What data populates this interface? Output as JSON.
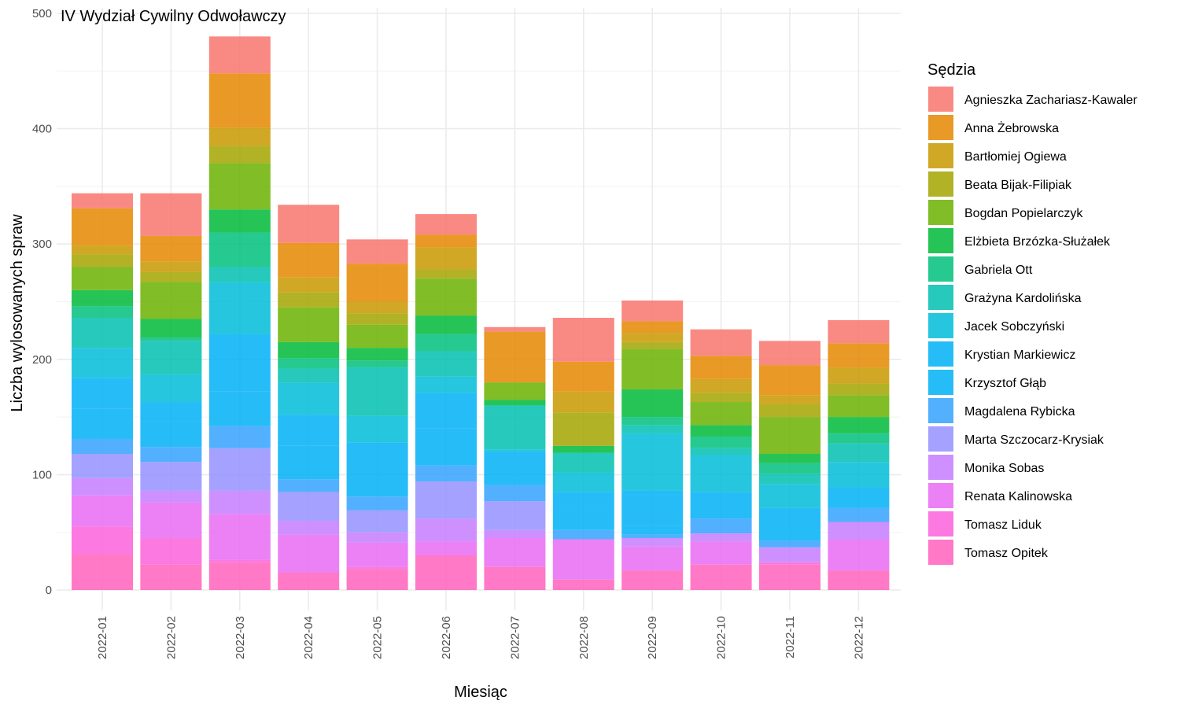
{
  "chart_data": {
    "type": "bar",
    "stacked": true,
    "title": "IV Wydział Cywilny Odwoławczy",
    "xlabel": "Miesiąc",
    "ylabel": "Liczba wylosowanych spraw",
    "ylim": [
      0,
      500
    ],
    "yticks": [
      0,
      100,
      200,
      300,
      400,
      500
    ],
    "grid": true,
    "legend_title": "Sędzia",
    "legend_position": "right",
    "categories": [
      "2022-01",
      "2022-02",
      "2022-03",
      "2022-04",
      "2022-05",
      "2022-06",
      "2022-07",
      "2022-08",
      "2022-09",
      "2022-10",
      "2022-11",
      "2022-12"
    ],
    "series": [
      {
        "name": "Agnieszka Zachariasz-Kawaler",
        "color": "#F8766D",
        "values": [
          13,
          37,
          32,
          33,
          21,
          18,
          4,
          38,
          18,
          23,
          21,
          20
        ]
      },
      {
        "name": "Anna Żebrowska",
        "color": "#E58700",
        "values": [
          32,
          22,
          47,
          30,
          33,
          11,
          44,
          26,
          10,
          20,
          26,
          21
        ]
      },
      {
        "name": "Bartłomiej Ogiewa",
        "color": "#C99800",
        "values": [
          8,
          9,
          16,
          13,
          10,
          19,
          0,
          18,
          8,
          12,
          8,
          14
        ]
      },
      {
        "name": "Beata Bijak-Filipiak",
        "color": "#A3A500",
        "values": [
          11,
          9,
          15,
          13,
          10,
          8,
          0,
          29,
          6,
          8,
          11,
          10
        ]
      },
      {
        "name": "Bogdan Popielarczyk",
        "color": "#6BB100",
        "values": [
          20,
          32,
          40,
          30,
          20,
          32,
          15,
          0,
          35,
          20,
          32,
          19
        ]
      },
      {
        "name": "Elżbieta Brzózka-Służałek",
        "color": "#00BA38",
        "values": [
          14,
          16,
          20,
          14,
          11,
          16,
          5,
          6,
          24,
          10,
          8,
          14
        ]
      },
      {
        "name": "Gabriela Ott",
        "color": "#00BF7D",
        "values": [
          10,
          3,
          30,
          9,
          6,
          15,
          0,
          0,
          7,
          10,
          9,
          9
        ]
      },
      {
        "name": "Grażyna Kardolińska",
        "color": "#00C0AF",
        "values": [
          26,
          29,
          13,
          12,
          42,
          22,
          38,
          17,
          7,
          6,
          9,
          16
        ]
      },
      {
        "name": "Jacek Sobczyński",
        "color": "#00BCD8",
        "values": [
          26,
          24,
          45,
          28,
          23,
          14,
          2,
          17,
          50,
          32,
          21,
          22
        ]
      },
      {
        "name": "Krystian Markiewicz",
        "color": "#00B0F6",
        "values": [
          27,
          17,
          50,
          27,
          25,
          31,
          3,
          13,
          30,
          23,
          28,
          18
        ]
      },
      {
        "name": "Krzysztof Głąb",
        "color": "#00B0F6",
        "values": [
          26,
          22,
          30,
          29,
          22,
          32,
          26,
          20,
          8,
          0,
          0,
          0
        ]
      },
      {
        "name": "Magdalena Rybicka",
        "color": "#35A2FF",
        "values": [
          13,
          13,
          19,
          11,
          12,
          14,
          14,
          8,
          3,
          13,
          6,
          12
        ]
      },
      {
        "name": "Marta Szczocarz-Krysiak",
        "color": "#9590FF",
        "values": [
          21,
          25,
          37,
          25,
          19,
          32,
          25,
          0,
          0,
          0,
          0,
          0
        ]
      },
      {
        "name": "Monika Sobas",
        "color": "#C77CFF",
        "values": [
          15,
          10,
          20,
          12,
          9,
          20,
          7,
          0,
          7,
          7,
          13,
          15
        ]
      },
      {
        "name": "Renata Kalinowska",
        "color": "#E76BF3",
        "values": [
          27,
          31,
          40,
          33,
          21,
          12,
          25,
          35,
          21,
          20,
          0,
          27
        ]
      },
      {
        "name": "Tomasz Liduk",
        "color": "#FA62DB",
        "values": [
          24,
          23,
          2,
          0,
          2,
          0,
          0,
          0,
          0,
          0,
          2,
          0
        ]
      },
      {
        "name": "Tomasz Opitek",
        "color": "#FF62BC",
        "values": [
          31,
          22,
          24,
          15,
          18,
          30,
          20,
          9,
          17,
          22,
          22,
          17
        ]
      }
    ]
  }
}
